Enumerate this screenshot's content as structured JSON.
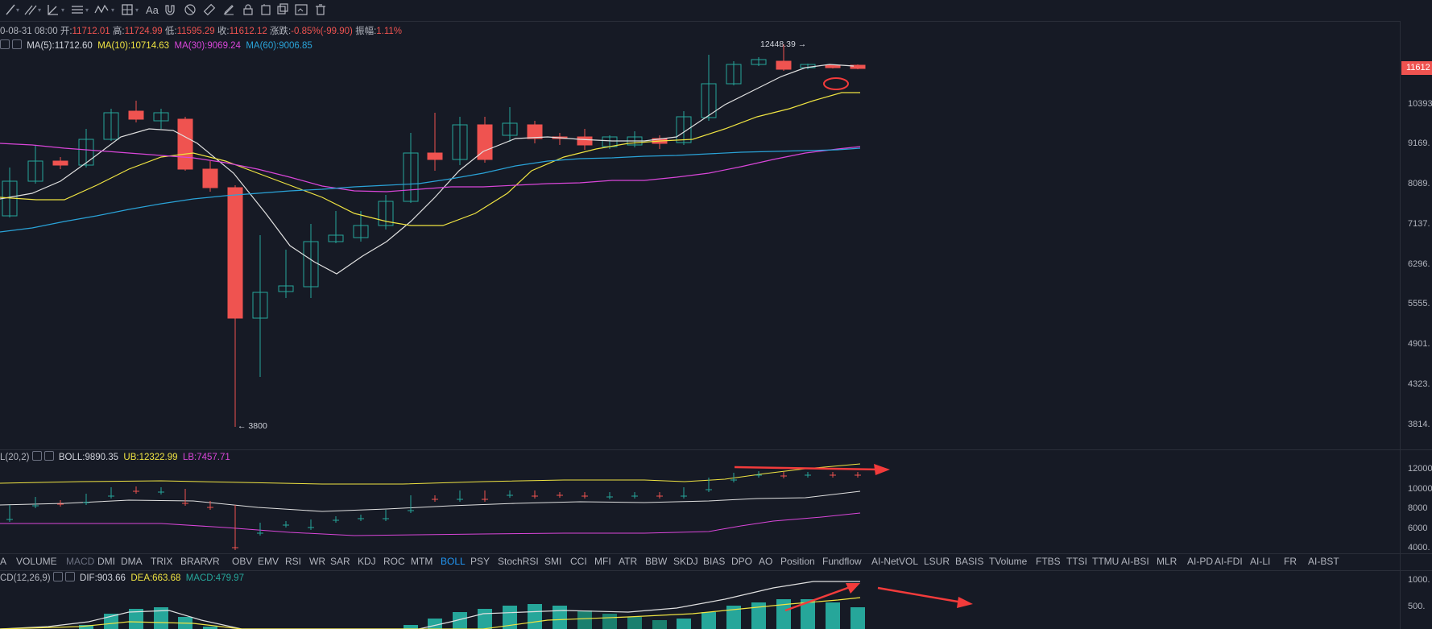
{
  "toolbar": {
    "tools": [
      "crosshair-line-icon",
      "multi-line-icon",
      "angle-tool-icon",
      "channel-icon",
      "wave-tool-icon",
      "measure-icon",
      "text-tool-icon",
      "magnet-icon",
      "ruler-icon",
      "pencil-icon",
      "lock-icon",
      "layers-icon",
      "screenshot-icon",
      "trash-icon"
    ],
    "text_tool_label": "Aa"
  },
  "ohlc": {
    "date": "0-08-31 08:00",
    "open_label": "开:",
    "open": "11712.01",
    "high_label": "高:",
    "high": "11724.99",
    "low_label": "低:",
    "low": "11595.29",
    "close_label": "收:",
    "close": "11612.12",
    "change_label": "涨跌:",
    "change": "-0.85%(-99.90)",
    "amp_label": "振幅:",
    "amp": "1.11%"
  },
  "ma_legend": {
    "ma5": "MA(5):11712.60",
    "ma10": "MA(10):10714.63",
    "ma30": "MA(30):9069.24",
    "ma60": "MA(60):9006.85"
  },
  "colors": {
    "up": "#26a69a",
    "down": "#ef5350",
    "ma5": "#e0e0e0",
    "ma10": "#f0e442",
    "ma30": "#d946d9",
    "ma60": "#2aa3d8",
    "bg": "#161a25",
    "arrow": "#f23b3b"
  },
  "price_axis": {
    "current": "11612",
    "labels": [
      "10393",
      "9169.",
      "8089.",
      "7137.",
      "6296.",
      "5555.",
      "4901.",
      "4323.",
      "3814."
    ]
  },
  "annotations": {
    "high": "12448.39",
    "low": "3800"
  },
  "boll_legend": {
    "name": "L(20,2)",
    "boll": "BOLL:9890.35",
    "ub": "UB:12322.99",
    "lb": "LB:7457.71",
    "axis": [
      "12000",
      "10000",
      "8000",
      "6000",
      "4000."
    ]
  },
  "indicator_tabs": [
    "A",
    "VOLUME",
    "MACD",
    "DMI",
    "DMA",
    "TRIX",
    "BRAR",
    "VR",
    "OBV",
    "EMV",
    "RSI",
    "WR",
    "SAR",
    "KDJ",
    "ROC",
    "MTM",
    "BOLL",
    "PSY",
    "StochRSI",
    "SMI",
    "CCI",
    "MFI",
    "ATR",
    "BBW",
    "SKDJ",
    "BIAS",
    "DPO",
    "AO",
    "Position",
    "Fundflow",
    "AI-NetVOL",
    "LSUR",
    "BASIS",
    "TVolume",
    "FTBS",
    "TTSI",
    "TTMU",
    "AI-BSI",
    "MLR",
    "AI-PD",
    "AI-FDI",
    "AI-LI",
    "FR",
    "AI-BST"
  ],
  "active_tab": "BOLL",
  "macd_legend": {
    "name": "CD(12,26,9)",
    "dif": "DIF:903.66",
    "dea": "DEA:663.68",
    "macd": "MACD:479.97",
    "axis": [
      "1000.",
      "500."
    ]
  }
}
